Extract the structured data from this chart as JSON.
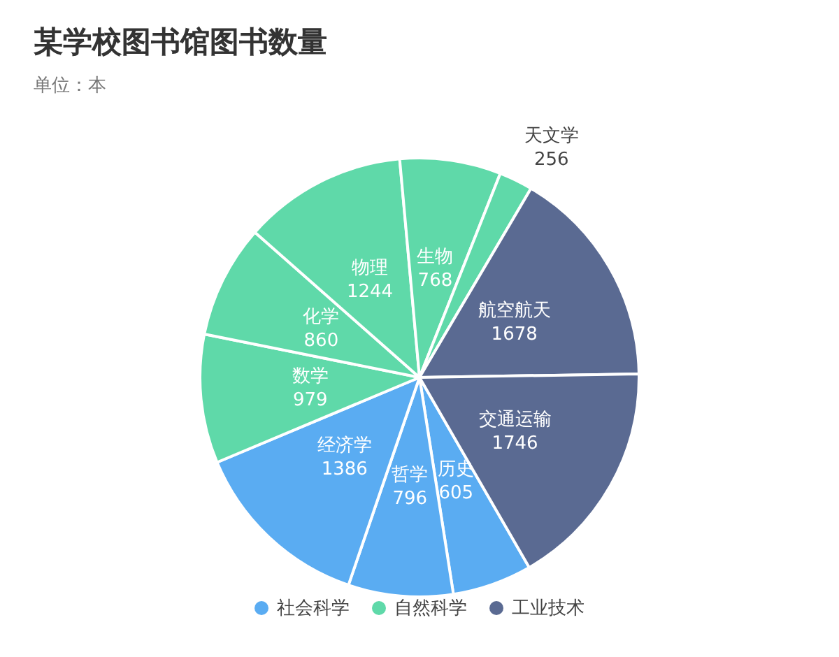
{
  "chart_data": {
    "type": "pie",
    "title": "某学校图书馆图书数量",
    "subtitle": "单位：本",
    "data_labels": true,
    "categories": [
      "历史",
      "哲学",
      "经济学",
      "数学",
      "化学",
      "物理",
      "生物",
      "天文学",
      "航空航天",
      "交通运输"
    ],
    "values": [
      605,
      796,
      1386,
      979,
      860,
      1244,
      768,
      256,
      1678,
      1746
    ],
    "colors": [
      "#5aacf2",
      "#5aacf2",
      "#5aacf2",
      "#5fd9a9",
      "#5fd9a9",
      "#5fd9a9",
      "#5fd9a9",
      "#5fd9a9",
      "#5a6a92",
      "#5a6a92"
    ],
    "annotations": [
      "社会科学",
      "自然科学",
      "工业技术"
    ]
  }
}
